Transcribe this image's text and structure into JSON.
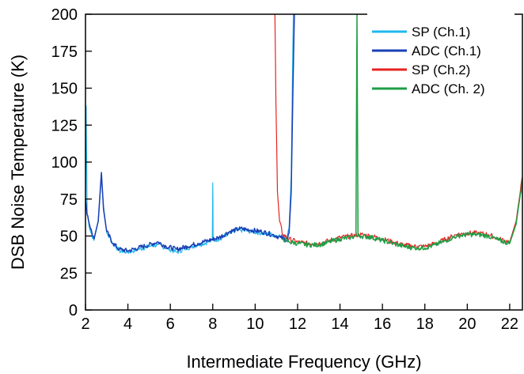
{
  "chart_data": {
    "type": "line",
    "xlabel": "Intermediate Frequency (GHz)",
    "ylabel": "DSB Noise Temperature (K)",
    "xlim": [
      2,
      22.6
    ],
    "ylim": [
      0,
      200
    ],
    "xticks": [
      2,
      4,
      6,
      8,
      10,
      12,
      14,
      16,
      18,
      20,
      22
    ],
    "yticks": [
      0,
      25,
      50,
      75,
      100,
      125,
      150,
      175,
      200
    ],
    "grid": false,
    "legend_position": "top-right",
    "series": [
      {
        "name": "SP (Ch.1)",
        "color": "#21b8ee",
        "x": [
          2.0,
          2.03,
          2.08,
          2.2,
          2.4,
          2.6,
          2.75,
          2.85,
          3.0,
          3.3,
          3.6,
          4.0,
          4.5,
          5.0,
          5.4,
          5.8,
          6.3,
          6.8,
          7.3,
          7.8,
          7.98,
          8.0,
          8.02,
          8.3,
          8.8,
          9.3,
          9.8,
          10.3,
          10.8,
          11.2,
          11.5,
          11.6,
          11.7,
          11.75,
          11.8,
          11.85
        ],
        "values": [
          70,
          138,
          65,
          55,
          47,
          60,
          90,
          70,
          52,
          45,
          40,
          39,
          41,
          43,
          44,
          42,
          39,
          42,
          44,
          46,
          47,
          86,
          47,
          48,
          52,
          54,
          53,
          52,
          51,
          50,
          49,
          55,
          90,
          150,
          200,
          200
        ]
      },
      {
        "name": "ADC (Ch.1)",
        "color": "#1a3fb5",
        "x": [
          2.0,
          2.05,
          2.2,
          2.4,
          2.6,
          2.75,
          2.85,
          3.0,
          3.3,
          3.6,
          4.0,
          4.5,
          5.0,
          5.4,
          5.8,
          6.3,
          6.8,
          7.3,
          7.8,
          8.3,
          8.8,
          9.3,
          9.8,
          10.3,
          10.8,
          11.2,
          11.5,
          11.6,
          11.7,
          11.78,
          11.85,
          11.9
        ],
        "values": [
          76,
          68,
          57,
          48,
          60,
          93,
          68,
          53,
          45,
          41,
          40,
          42,
          44,
          46,
          43,
          41,
          43,
          45,
          47,
          49,
          53,
          55,
          54,
          53,
          51,
          49,
          47,
          52,
          80,
          150,
          200,
          200
        ]
      },
      {
        "name": "SP (Ch.2)",
        "color": "#e52421",
        "x": [
          10.9,
          10.93,
          10.98,
          11.05,
          11.15,
          11.3,
          11.6,
          12.0,
          12.5,
          13.0,
          13.5,
          14.0,
          14.5,
          15.0,
          15.5,
          16.0,
          16.5,
          17.0,
          17.5,
          18.0,
          18.5,
          19.0,
          19.5,
          20.0,
          20.5,
          21.0,
          21.5,
          22.0,
          22.3,
          22.5,
          22.6
        ],
        "values": [
          200,
          200,
          140,
          80,
          60,
          51,
          48,
          46,
          45,
          45,
          47,
          49,
          50,
          51,
          50,
          48,
          46,
          44,
          43,
          43,
          45,
          48,
          51,
          52,
          52,
          51,
          48,
          46,
          60,
          80,
          90
        ]
      },
      {
        "name": "ADC (Ch. 2)",
        "color": "#1e9e45",
        "x": [
          11.3,
          11.6,
          12.0,
          12.5,
          13.0,
          13.5,
          14.0,
          14.5,
          14.75,
          14.8,
          14.85,
          15.0,
          15.5,
          16.0,
          16.5,
          17.0,
          17.5,
          18.0,
          18.5,
          19.0,
          19.5,
          20.0,
          20.5,
          21.0,
          21.5,
          22.0,
          22.3,
          22.5,
          22.6
        ],
        "values": [
          48,
          46,
          45,
          44,
          44,
          46,
          48,
          49,
          50,
          200,
          50,
          50,
          49,
          47,
          45,
          43,
          42,
          42,
          44,
          47,
          50,
          51,
          51,
          50,
          47,
          45,
          58,
          78,
          88
        ]
      }
    ]
  }
}
